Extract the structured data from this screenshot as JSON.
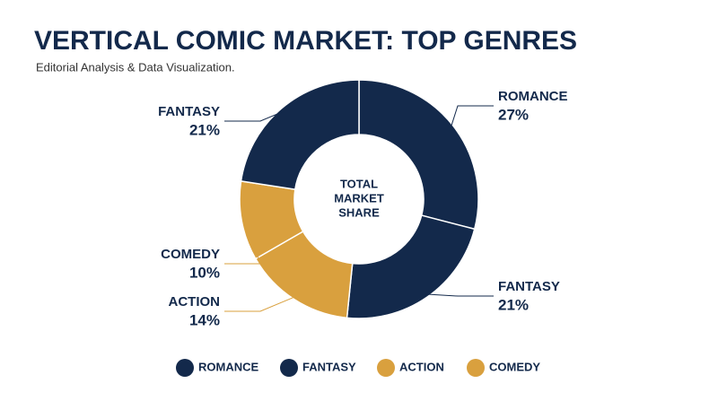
{
  "chart_data": {
    "type": "donut",
    "title": "VERTICAL COMIC MARKET: TOP GENRES",
    "subtitle": "Editorial Analysis & Data Visualization.",
    "center_label": [
      "TOTAL",
      "MARKET",
      "SHARE"
    ],
    "categories": [
      "ROMANCE",
      "FANTASY",
      "ACTION",
      "COMEDY",
      "FANTASY"
    ],
    "values": [
      27,
      21,
      14,
      10,
      21
    ],
    "value_labels": [
      "27%",
      "21%",
      "14%",
      "10%",
      "21%"
    ],
    "colors": [
      "#13294b",
      "#13294b",
      "#d9a03e",
      "#d9a03e",
      "#13294b"
    ],
    "legend": [
      {
        "name": "ROMANCE",
        "color": "#13294b"
      },
      {
        "name": "FANTASY",
        "color": "#13294b"
      },
      {
        "name": "ACTION",
        "color": "#d9a03e"
      },
      {
        "name": "COMEDY",
        "color": "#d9a03e"
      }
    ]
  }
}
